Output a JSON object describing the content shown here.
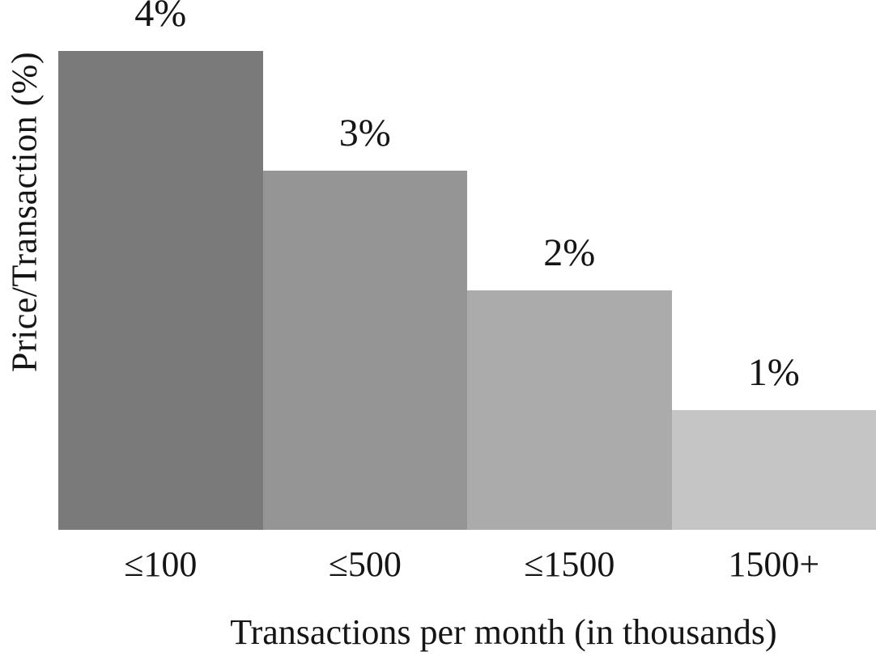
{
  "chart_data": {
    "type": "bar",
    "categories": [
      "≤100",
      "≤500",
      "≤1500",
      "1500+"
    ],
    "values": [
      4,
      3,
      2,
      1
    ],
    "value_labels": [
      "4%",
      "3%",
      "2%",
      "1%"
    ],
    "bar_colors": [
      "#7a7a7a",
      "#959595",
      "#ababab",
      "#c5c5c5"
    ],
    "title": "",
    "xlabel": "Transactions per month (in thousands)",
    "ylabel": "Price/Transaction (%)",
    "ylim": [
      0,
      4
    ],
    "grid": false,
    "legend": "none",
    "axis_lines": "none",
    "label_position": "above-bars"
  },
  "style": {
    "text_color": "#151515",
    "background": "#ffffff"
  }
}
